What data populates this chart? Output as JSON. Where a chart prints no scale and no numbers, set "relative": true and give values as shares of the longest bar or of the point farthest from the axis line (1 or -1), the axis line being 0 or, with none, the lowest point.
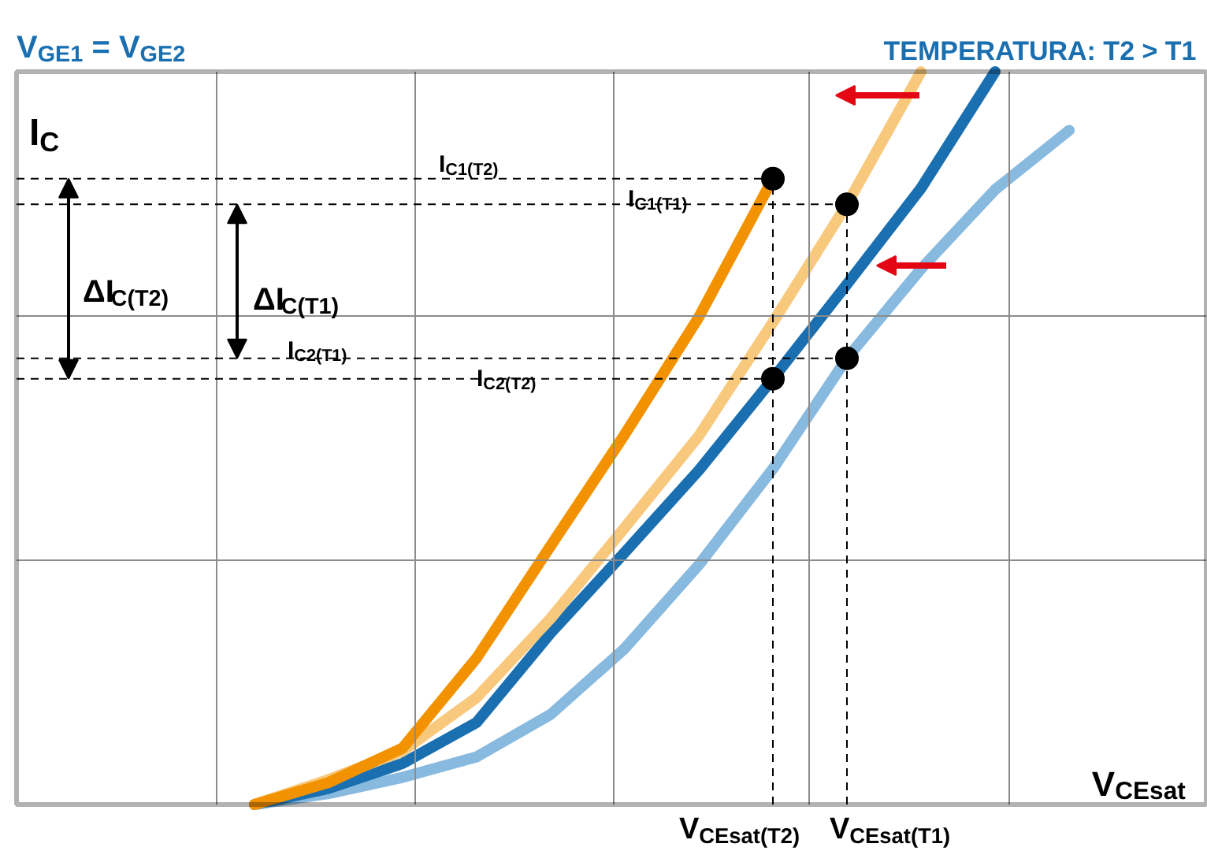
{
  "chart_data": {
    "type": "line",
    "relative": true,
    "title": "V$_{GE1}$ = V$_{GE2}$",
    "subtitle": "TEMPERATURA: T2 > T1",
    "xlabel": "V$_{CEsat}$",
    "ylabel": "I$_{C}$",
    "grid": true,
    "marker": "none",
    "line_style": "solid",
    "categories": [
      null,
      null,
      null,
      null,
      null,
      null,
      null,
      null,
      null,
      null,
      null,
      null,
      null,
      null,
      null,
      null
    ],
    "series": [
      {
        "color": "#f39200",
        "values": [
          null,
          null,
          null,
          0,
          0.03,
          0.077,
          0.2,
          0.353,
          0.505,
          0.665,
          0.854,
          null,
          null,
          null,
          null,
          null
        ]
      },
      {
        "color": "#f8c97d",
        "values": [
          null,
          null,
          null,
          0,
          0.034,
          0.073,
          0.146,
          0.254,
          0.378,
          0.503,
          0.658,
          0.819,
          1,
          null,
          null,
          null
        ]
      },
      {
        "color": "#1a6fb0",
        "values": [
          null,
          null,
          null,
          0,
          0.022,
          0.056,
          0.112,
          0.234,
          0.344,
          0.456,
          0.581,
          0.71,
          0.841,
          1,
          null,
          null
        ]
      },
      {
        "color": "#88b9df",
        "values": [
          null,
          null,
          null,
          0,
          0.015,
          0.037,
          0.065,
          0.123,
          0.213,
          0.327,
          0.458,
          0.609,
          0.731,
          0.839,
          0.92,
          null
        ]
      }
    ],
    "ref_lines": [
      {
        "axis": "y",
        "value": 0.854,
        "label": "I$_{C1(T2)}$",
        "line_style": "dashed",
        "color": "#000000"
      },
      {
        "axis": "y",
        "value": 0.819,
        "label": "I$_{C1(T1)}$",
        "line_style": "dashed",
        "color": "#000000"
      },
      {
        "axis": "y",
        "value": 0.609,
        "label": "I$_{C2(T1)}$",
        "line_style": "dashed",
        "color": "#000000"
      },
      {
        "axis": "y",
        "value": 0.581,
        "label": "I$_{C2(T2)}$",
        "line_style": "dashed",
        "color": "#000000"
      }
    ],
    "annotations": [
      "ΔI$_{C(T2)}$",
      "ΔI$_{C(T1)}$",
      "V$_{CEsat(T2)}$",
      "V$_{CEsat(T1)}$"
    ]
  }
}
